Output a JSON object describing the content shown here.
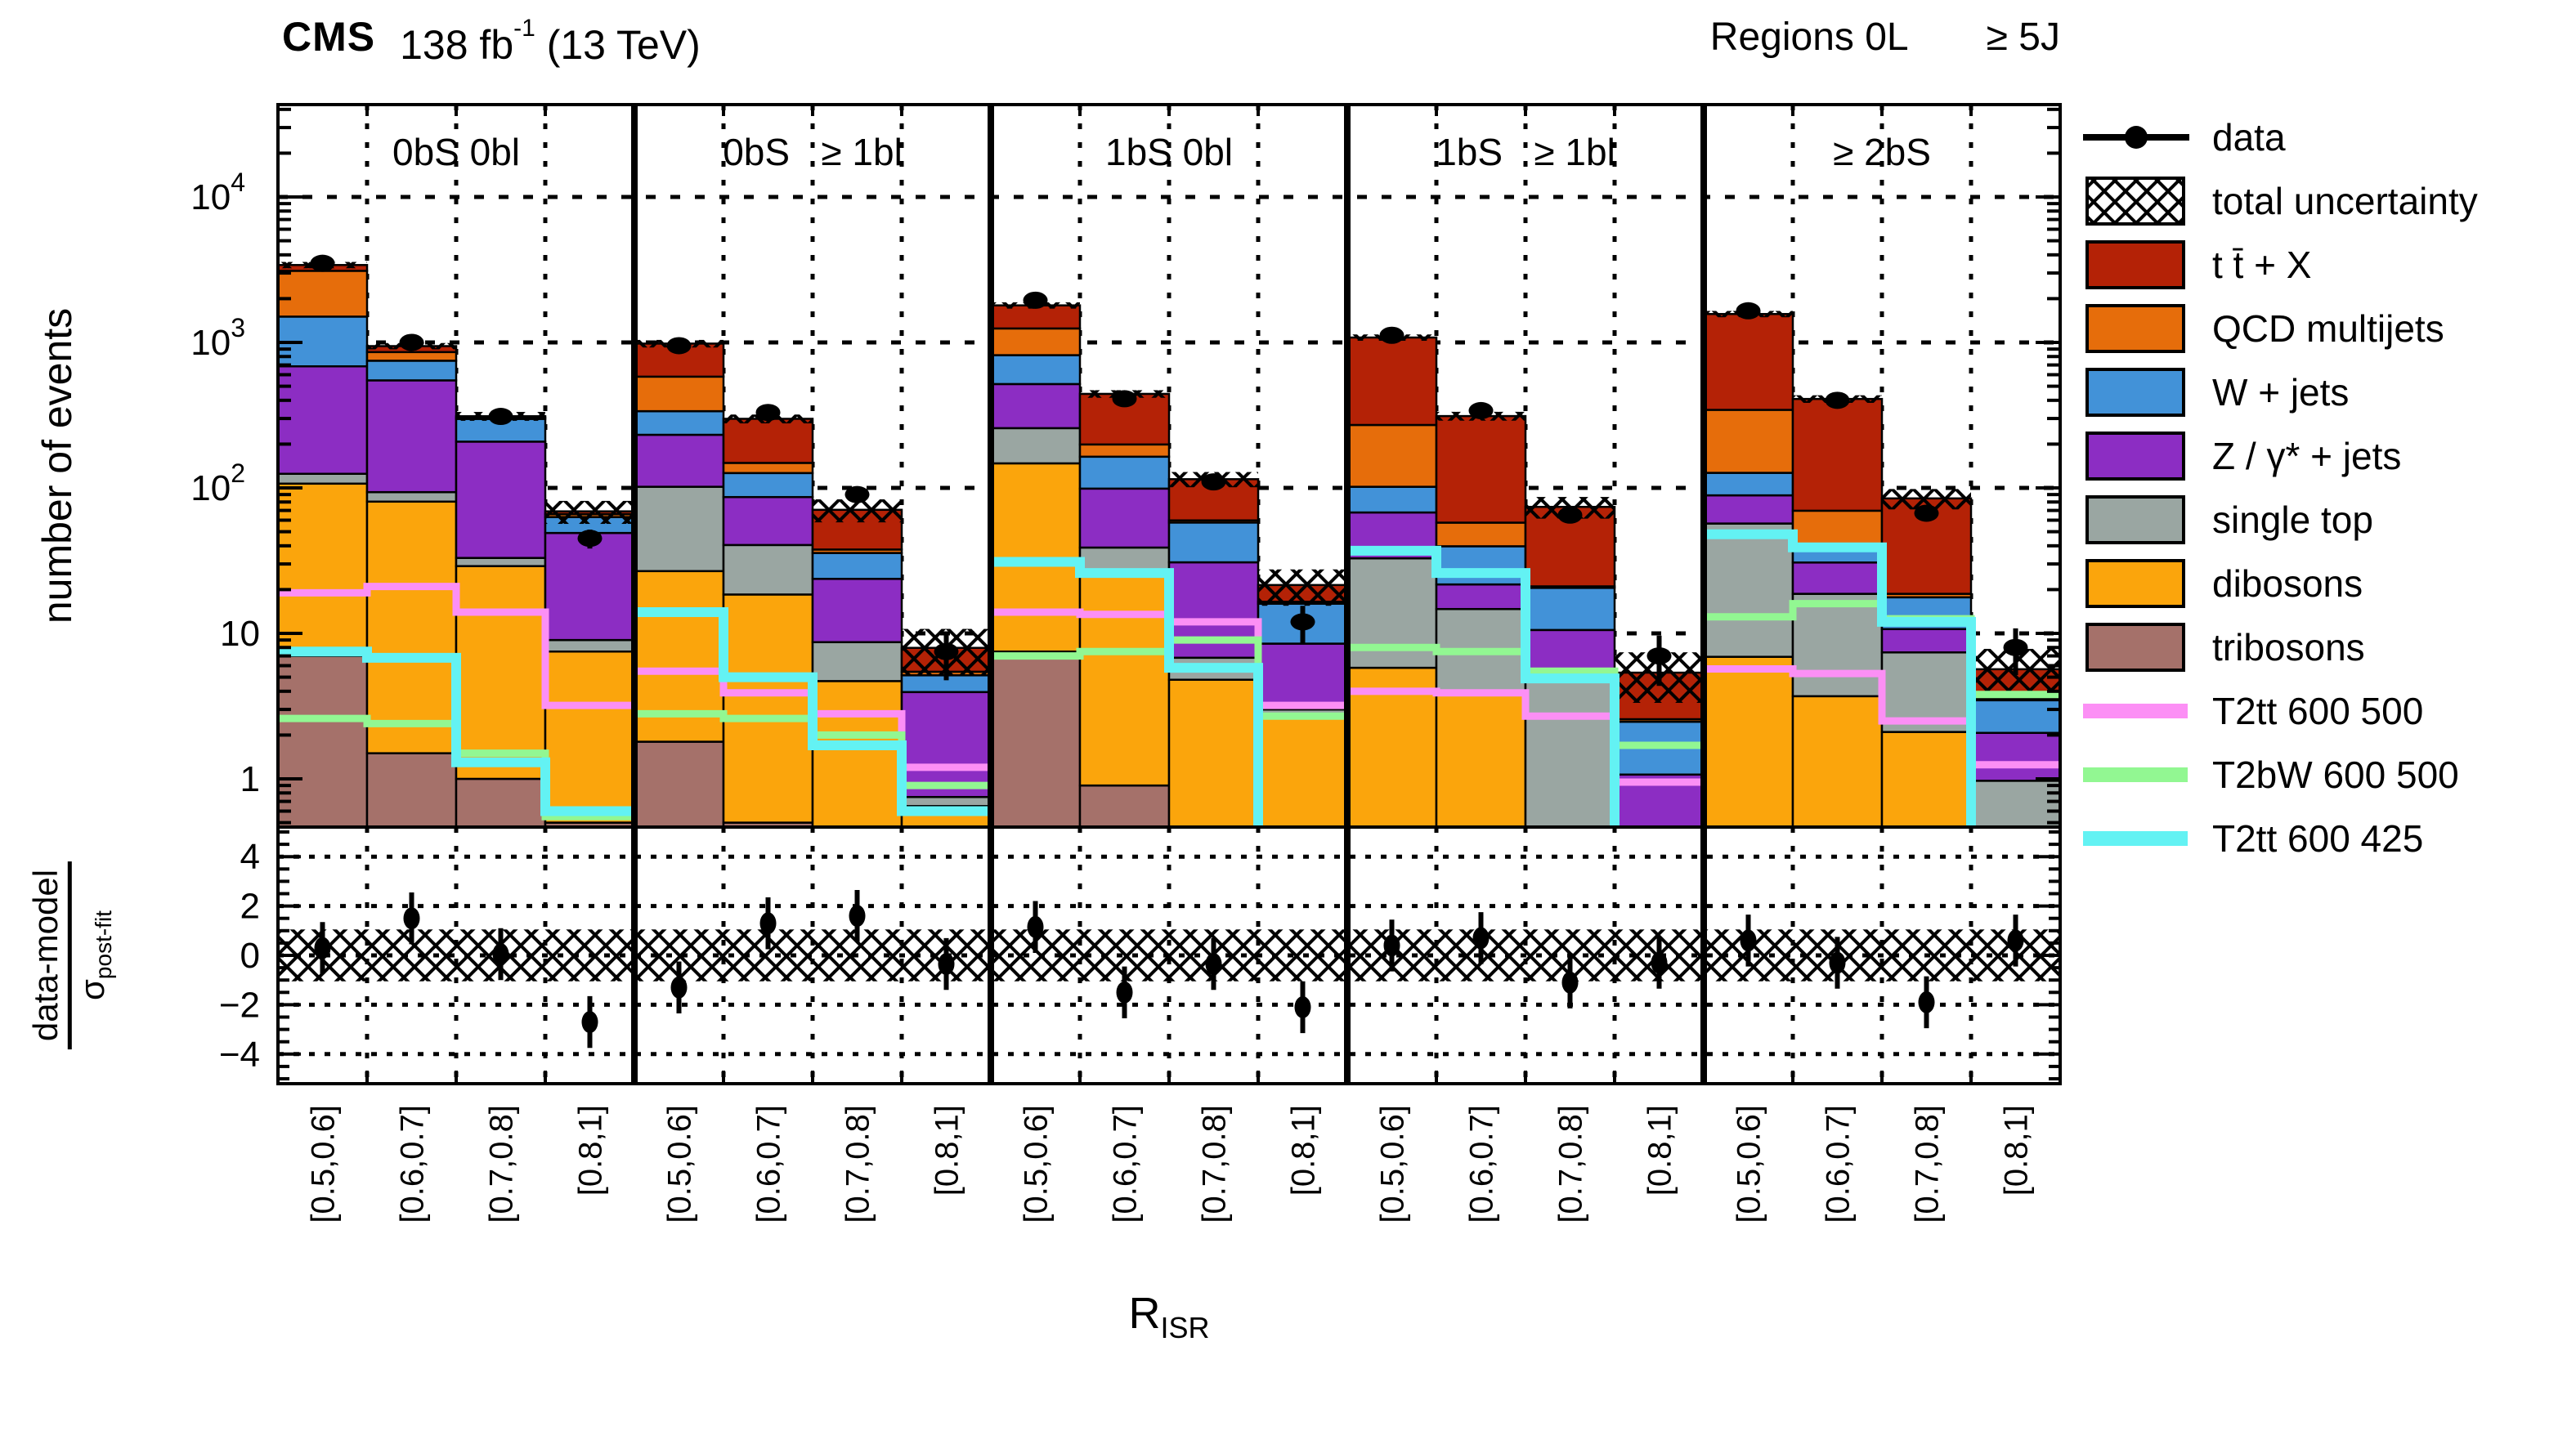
{
  "header": {
    "experiment": "CMS",
    "lumi_text": "138 fb",
    "lumi_exp": "-1",
    "energy_text": "(13 TeV)",
    "regions_label": "Regions 0L",
    "jets_label": "≥ 5J"
  },
  "axes": {
    "y_label": "number of events",
    "y_ticks": [
      {
        "v": 1,
        "base": "1",
        "exp": ""
      },
      {
        "v": 10,
        "base": "10",
        "exp": ""
      },
      {
        "v": 100,
        "base": "10",
        "exp": "2"
      },
      {
        "v": 1000,
        "base": "10",
        "exp": "3"
      },
      {
        "v": 10000,
        "base": "10",
        "exp": "4"
      }
    ],
    "ratio_num": "data-model",
    "ratio_den": "σ",
    "ratio_den_sub": "post-fit",
    "ratio_ticks": [
      4,
      2,
      0,
      -2,
      -4
    ],
    "ratio_tick_labels": [
      "4",
      "2",
      "0",
      "−2",
      "−4"
    ],
    "x_label_base": "R",
    "x_label_sub": "ISR",
    "ylim": [
      0.47,
      45000
    ],
    "ratio_ylim": [
      -5.3,
      5.3
    ]
  },
  "legend": {
    "entries": [
      {
        "label": "data",
        "type": "data",
        "color": "#000000"
      },
      {
        "label": "total uncertainty",
        "type": "hatch",
        "color": "#000000"
      },
      {
        "label": "t t̄ + X",
        "type": "box",
        "color": "#b42206"
      },
      {
        "label": "QCD multijets",
        "type": "box",
        "color": "#e66d0b"
      },
      {
        "label": "W + jets",
        "type": "box",
        "color": "#4292d8"
      },
      {
        "label": "Z / γ* + jets",
        "type": "box",
        "color": "#8c2dc3"
      },
      {
        "label": "single top",
        "type": "box",
        "color": "#9aa6a2"
      },
      {
        "label": "dibosons",
        "type": "box",
        "color": "#fba50c"
      },
      {
        "label": "tribosons",
        "type": "box",
        "color": "#a5716a"
      },
      {
        "label": "T2tt 600 500",
        "type": "line",
        "color": "#fc8ff5"
      },
      {
        "label": "T2bW 600 500",
        "type": "line",
        "color": "#92f792"
      },
      {
        "label": "T2tt 600 425",
        "type": "line",
        "color": "#63f2f3"
      }
    ]
  },
  "chart_data": {
    "type": "stacked-bar-log-ratio",
    "title": "CMS 138 fb-1 (13 TeV), Regions 0L >= 5J",
    "xlabel": "R_ISR",
    "ylabel": "number of events",
    "grid": true,
    "categories": [
      "[0.5,0.6]",
      "[0.6,0.7]",
      "[0.7,0.8]",
      "[0.8,1]"
    ],
    "series_order_bottom_to_top": [
      "tribosons",
      "dibosons",
      "single_top",
      "zgamma",
      "wjets",
      "qcd",
      "ttx"
    ],
    "series": [
      {
        "key": "tribosons",
        "label": "tribosons",
        "color": "#a5716a"
      },
      {
        "key": "dibosons",
        "label": "dibosons",
        "color": "#fba50c"
      },
      {
        "key": "single_top",
        "label": "single top",
        "color": "#9aa6a2"
      },
      {
        "key": "zgamma",
        "label": "Z / γ* + jets",
        "color": "#8c2dc3"
      },
      {
        "key": "wjets",
        "label": "W + jets",
        "color": "#4292d8"
      },
      {
        "key": "qcd",
        "label": "QCD multijets",
        "color": "#e66d0b"
      },
      {
        "key": "ttx",
        "label": "t t̄ + X",
        "color": "#b42206"
      }
    ],
    "signal_defs": [
      {
        "key": "t2tt_600_500",
        "label": "T2tt 600 500",
        "color": "#fc8ff5",
        "width": 9
      },
      {
        "key": "t2bw_600_500",
        "label": "T2bW 600 500",
        "color": "#92f792",
        "width": 9
      },
      {
        "key": "t2tt_600_425",
        "label": "T2tt 600 425",
        "color": "#63f2f3",
        "width": 12
      }
    ],
    "panels": [
      {
        "label": "0bS 0bl",
        "bins": [
          {
            "values": {
              "tribosons": 7,
              "dibosons": 100,
              "single_top": 18,
              "zgamma": 560,
              "wjets": 820,
              "qcd": 1600,
              "ttx": 300
            },
            "data": 3500,
            "unc_frac": 0.05,
            "signals": {
              "t2tt_600_500": 19,
              "t2bw_600_500": 2.6,
              "t2tt_600_425": 7.5
            },
            "pull": 0.3
          },
          {
            "values": {
              "tribosons": 1.5,
              "dibosons": 79,
              "single_top": 13,
              "zgamma": 455,
              "wjets": 200,
              "qcd": 110,
              "ttx": 85
            },
            "data": 1000,
            "unc_frac": 0.05,
            "signals": {
              "t2tt_600_500": 21,
              "t2bw_600_500": 2.4,
              "t2tt_600_425": 6.8
            },
            "pull": 1.5
          },
          {
            "values": {
              "tribosons": 1,
              "dibosons": 28,
              "single_top": 4,
              "zgamma": 175,
              "wjets": 90,
              "qcd": 7,
              "ttx": 6
            },
            "data": 310,
            "unc_frac": 0.07,
            "signals": {
              "t2tt_600_500": 14,
              "t2bw_600_500": 1.5,
              "t2tt_600_425": 1.3
            },
            "pull": 0.05
          },
          {
            "values": {
              "tribosons": 0.5,
              "dibosons": 7,
              "single_top": 1.5,
              "zgamma": 40,
              "wjets": 14,
              "qcd": 3,
              "ttx": 3
            },
            "data": 45,
            "unc_frac": 0.18,
            "signals": {
              "t2tt_600_500": 3.2,
              "t2bw_600_500": 0.55,
              "t2tt_600_425": 0.6
            },
            "pull": -2.7
          }
        ]
      },
      {
        "label": "0bS   ≥ 1bl",
        "bins": [
          {
            "values": {
              "tribosons": 1.8,
              "dibosons": 25,
              "single_top": 75,
              "zgamma": 130,
              "wjets": 105,
              "qcd": 245,
              "ttx": 400
            },
            "data": 950,
            "unc_frac": 0.06,
            "signals": {
              "t2tt_600_500": 5.5,
              "t2bw_600_500": 2.8,
              "t2tt_600_425": 14
            },
            "pull": -1.3
          },
          {
            "values": {
              "tribosons": 0.5,
              "dibosons": 18,
              "single_top": 22,
              "zgamma": 46,
              "wjets": 40,
              "qcd": 22,
              "ttx": 150
            },
            "data": 330,
            "unc_frac": 0.07,
            "signals": {
              "t2tt_600_500": 3.9,
              "t2bw_600_500": 2.6,
              "t2tt_600_425": 5
            },
            "pull": 1.3
          },
          {
            "values": {
              "tribosons": 0.2,
              "dibosons": 4.5,
              "single_top": 4,
              "zgamma": 15,
              "wjets": 12,
              "qcd": 2,
              "ttx": 33
            },
            "data": 90,
            "unc_frac": 0.18,
            "signals": {
              "t2tt_600_500": 2.8,
              "t2bw_600_500": 2.0,
              "t2tt_600_425": 1.7
            },
            "pull": 1.6
          },
          {
            "values": {
              "tribosons": 0.05,
              "dibosons": 0.6,
              "single_top": 0.1,
              "zgamma": 3.2,
              "wjets": 1.2,
              "qcd": 0.3,
              "ttx": 2.5
            },
            "data": 7.5,
            "unc_frac": 0.35,
            "signals": {
              "t2tt_600_500": 1.2,
              "t2bw_600_500": 0.9,
              "t2tt_600_425": 0.6
            },
            "pull": -0.35
          }
        ]
      },
      {
        "label": "1bS 0bl",
        "bins": [
          {
            "values": {
              "tribosons": 7.5,
              "dibosons": 140,
              "single_top": 110,
              "zgamma": 260,
              "wjets": 300,
              "qcd": 430,
              "ttx": 550
            },
            "data": 1950,
            "unc_frac": 0.05,
            "signals": {
              "t2tt_600_500": 14,
              "t2bw_600_500": 7,
              "t2tt_600_425": 31
            },
            "pull": 1.15
          },
          {
            "values": {
              "tribosons": 0.9,
              "dibosons": 26,
              "single_top": 12,
              "zgamma": 60,
              "wjets": 65,
              "qcd": 35,
              "ttx": 244
            },
            "data": 410,
            "unc_frac": 0.06,
            "signals": {
              "t2tt_600_500": 13.5,
              "t2bw_600_500": 7.5,
              "t2tt_600_425": 26
            },
            "pull": -1.5
          },
          {
            "values": {
              "tribosons": 0.3,
              "dibosons": 4.5,
              "single_top": 2,
              "zgamma": 24,
              "wjets": 27,
              "qcd": 2,
              "ttx": 55
            },
            "data": 110,
            "unc_frac": 0.12,
            "signals": {
              "t2tt_600_500": 12,
              "t2bw_600_500": 9,
              "t2tt_600_425": 5.8
            },
            "pull": -0.35
          },
          {
            "values": {
              "tribosons": 0.1,
              "dibosons": 2.5,
              "single_top": 0.4,
              "zgamma": 5.5,
              "wjets": 7.5,
              "qcd": 0.5,
              "ttx": 5
            },
            "data": 12,
            "unc_frac": 0.28,
            "signals": {
              "t2tt_600_500": 3.2,
              "t2bw_600_500": 2.7,
              "t2tt_600_425": 0.5
            },
            "pull": -2.1
          }
        ]
      },
      {
        "label": "1bS   ≥ 1bl",
        "bins": [
          {
            "values": {
              "tribosons": 0.3,
              "dibosons": 5.5,
              "single_top": 27,
              "zgamma": 35,
              "wjets": 34,
              "qcd": 169,
              "ttx": 810
            },
            "data": 1120,
            "unc_frac": 0.05,
            "signals": {
              "t2tt_600_500": 4.0,
              "t2bw_600_500": 8.0,
              "t2tt_600_425": 37
            },
            "pull": 0.4
          },
          {
            "values": {
              "tribosons": 0.2,
              "dibosons": 3.8,
              "single_top": 10.7,
              "zgamma": 7,
              "wjets": 18,
              "qcd": 18,
              "ttx": 254
            },
            "data": 340,
            "unc_frac": 0.07,
            "signals": {
              "t2tt_600_500": 3.9,
              "t2bw_600_500": 7.5,
              "t2tt_600_425": 26
            },
            "pull": 0.7
          },
          {
            "values": {
              "tribosons": 0.05,
              "dibosons": 0.3,
              "single_top": 4.8,
              "zgamma": 5.4,
              "wjets": 10,
              "qcd": 0.5,
              "ttx": 53
            },
            "data": 65,
            "unc_frac": 0.17,
            "signals": {
              "t2tt_600_500": 2.7,
              "t2bw_600_500": 5.5,
              "t2tt_600_425": 4.9
            },
            "pull": -1.1
          },
          {
            "values": {
              "tribosons": 0.02,
              "dibosons": 0.1,
              "single_top": 0.1,
              "zgamma": 0.85,
              "wjets": 1.4,
              "qcd": 0.1,
              "ttx": 2.8
            },
            "data": 7,
            "unc_frac": 0.38,
            "signals": {
              "t2tt_600_500": 0.95,
              "t2bw_600_500": 1.7,
              "t2tt_600_425": 0.5
            },
            "pull": -0.3
          }
        ]
      },
      {
        "label": "≥ 2bS",
        "bins": [
          {
            "values": {
              "tribosons": 0.4,
              "dibosons": 6.5,
              "single_top": 50,
              "zgamma": 32,
              "wjets": 38,
              "qcd": 217,
              "ttx": 1224
            },
            "data": 1650,
            "unc_frac": 0.05,
            "signals": {
              "t2tt_600_500": 5.7,
              "t2bw_600_500": 13,
              "t2tt_600_425": 48
            },
            "pull": 0.6
          },
          {
            "values": {
              "tribosons": 0.2,
              "dibosons": 3.5,
              "single_top": 15,
              "zgamma": 12,
              "wjets": 9,
              "qcd": 30,
              "ttx": 339
            },
            "data": 400,
            "unc_frac": 0.06,
            "signals": {
              "t2tt_600_500": 5.3,
              "t2bw_600_500": 16,
              "t2tt_600_425": 39
            },
            "pull": -0.3
          },
          {
            "values": {
              "tribosons": 0.1,
              "dibosons": 2,
              "single_top": 5.3,
              "zgamma": 3.3,
              "wjets": 7,
              "qcd": 1,
              "ttx": 66
            },
            "data": 67,
            "unc_frac": 0.16,
            "signals": {
              "t2tt_600_500": 2.5,
              "t2bw_600_500": 12.6,
              "t2tt_600_425": 12
            },
            "pull": -1.9
          },
          {
            "values": {
              "tribosons": 0.02,
              "dibosons": 0.05,
              "single_top": 0.9,
              "zgamma": 1.1,
              "wjets": 1.4,
              "qcd": 0.1,
              "ttx": 2.1
            },
            "data": 8,
            "unc_frac": 0.38,
            "signals": {
              "t2tt_600_500": 1.25,
              "t2bw_600_500": 3.8,
              "t2tt_600_425": 0.5
            },
            "pull": 0.6
          }
        ]
      }
    ],
    "ratio_band": 1.05,
    "ratio_point_error": 1.05
  }
}
